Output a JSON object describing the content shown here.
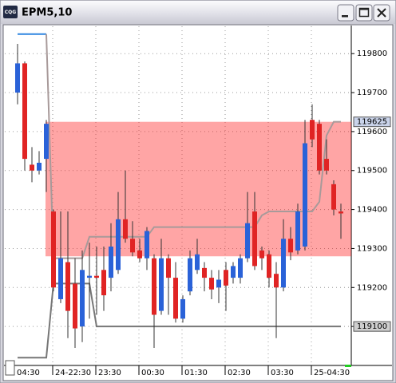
{
  "window": {
    "title": "EPM5,10",
    "icon": "CQG"
  },
  "chart_data": {
    "type": "candlestick",
    "up_color": "#2a62d8",
    "down_color": "#e02424",
    "wick_color": "#333333",
    "ylim": [
      119000,
      119870
    ],
    "yticks": [
      119100,
      119200,
      119300,
      119400,
      119500,
      119600,
      119700,
      119800
    ],
    "grid": true,
    "x_labels": [
      "04:30",
      "24-22:30",
      "23:30",
      "00:30",
      "01:30",
      "02:30",
      "03:30",
      "25-04:30"
    ],
    "open": [
      119700,
      119775,
      119515,
      119500,
      119530,
      119395,
      119170,
      119265,
      119210,
      119100,
      119225,
      119230,
      119245,
      119225,
      119245,
      119375,
      119325,
      119295,
      119275,
      119275,
      119140,
      119275,
      119225,
      119120,
      119190,
      119245,
      119250,
      119225,
      119200,
      119245,
      119225,
      119225,
      119275,
      119395,
      119295,
      119285,
      119235,
      119200,
      119325,
      119295,
      119305,
      119630,
      119620,
      119530,
      119465,
      119395
    ],
    "high": [
      119825,
      119780,
      119560,
      119550,
      119630,
      119400,
      119395,
      119395,
      119275,
      119295,
      119315,
      119305,
      119305,
      119365,
      119445,
      119500,
      119370,
      119325,
      119355,
      119285,
      119325,
      119285,
      119265,
      119180,
      119295,
      119325,
      119265,
      119245,
      119245,
      119265,
      119265,
      119285,
      119445,
      119445,
      119305,
      119295,
      119265,
      119375,
      119355,
      119415,
      119630,
      119670,
      119630,
      119580,
      119475,
      119415
    ],
    "low": [
      119670,
      119500,
      119470,
      119490,
      119445,
      119190,
      119160,
      119070,
      119045,
      119060,
      119120,
      119130,
      119140,
      119190,
      119235,
      119315,
      119280,
      119265,
      119245,
      119045,
      119130,
      119130,
      119110,
      119110,
      119180,
      119235,
      119190,
      119170,
      119160,
      119140,
      119210,
      119210,
      119265,
      119245,
      119245,
      119200,
      119070,
      119190,
      119270,
      119285,
      119295,
      119560,
      119490,
      119490,
      119385,
      119325
    ],
    "close": [
      119775,
      119530,
      119500,
      119520,
      119620,
      119200,
      119275,
      119140,
      119095,
      119245,
      119230,
      119225,
      119180,
      119305,
      119375,
      119325,
      119290,
      119275,
      119345,
      119130,
      119275,
      119225,
      119120,
      119170,
      119275,
      119285,
      119225,
      119195,
      119220,
      119205,
      119255,
      119275,
      119365,
      119255,
      119275,
      119225,
      119200,
      119325,
      119290,
      119395,
      119570,
      119580,
      119500,
      119500,
      119400,
      119390
    ],
    "zone_low": 119280,
    "zone_high": 119625,
    "zone_color": "rgba(255,40,40,0.42)",
    "lines": [
      {
        "color": "#2f86e0",
        "values": [
          119850,
          119850,
          119850,
          119850,
          119850,
          null,
          null,
          null,
          null,
          null,
          null,
          null,
          null,
          null,
          null,
          null,
          null,
          null,
          null,
          null,
          null,
          null,
          null,
          null,
          null,
          null,
          null,
          null,
          null,
          null,
          null,
          null,
          null,
          null,
          null,
          null,
          null,
          null,
          null,
          null,
          null,
          null,
          null,
          null,
          null,
          null
        ]
      },
      {
        "color": "#a89a9a",
        "values": [
          null,
          null,
          null,
          null,
          119850,
          119275,
          119275,
          119275,
          119275,
          119275,
          119330,
          119330,
          119330,
          119330,
          119330,
          119330,
          119330,
          119330,
          119330,
          119355,
          119355,
          119355,
          119355,
          119355,
          119355,
          119355,
          119355,
          119355,
          119355,
          119355,
          119355,
          119355,
          119355,
          119355,
          119385,
          119395,
          119395,
          119395,
          119395,
          119395,
          119395,
          119395,
          119420,
          119590,
          119625,
          119625
        ]
      },
      {
        "color": "#777777",
        "values": [
          119020,
          119020,
          119020,
          119020,
          119020,
          119210,
          119210,
          119210,
          119210,
          119210,
          119210,
          119100,
          119100,
          119100,
          119100,
          119100,
          119100,
          119100,
          119100,
          119100,
          119100,
          119100,
          119100,
          119100,
          119100,
          119100,
          119100,
          119100,
          119100,
          119100,
          119100,
          119100,
          119100,
          119100,
          119100,
          119100,
          119100,
          119100,
          119100,
          119100,
          119100,
          119100,
          119100,
          119100,
          119100,
          119100
        ]
      }
    ],
    "price_markers": [
      119625,
      119100
    ]
  }
}
